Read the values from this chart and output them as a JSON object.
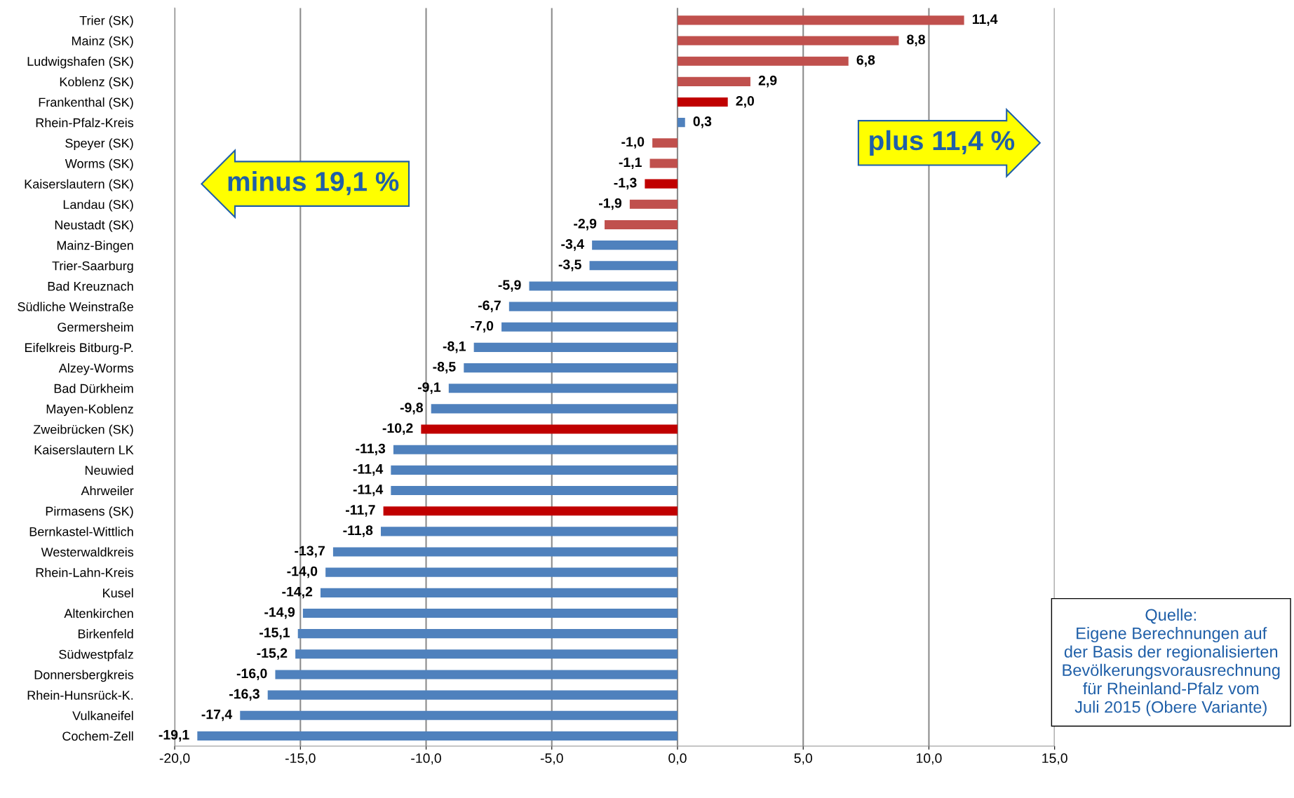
{
  "chart_data": {
    "type": "bar",
    "orientation": "horizontal",
    "grid": "x",
    "categories": [
      "Trier (SK)",
      "Mainz (SK)",
      "Ludwigshafen (SK)",
      "Koblenz (SK)",
      "Frankenthal (SK)",
      "Rhein-Pfalz-Kreis",
      "Speyer (SK)",
      "Worms (SK)",
      "Kaiserslautern (SK)",
      "Landau (SK)",
      "Neustadt (SK)",
      "Mainz-Bingen",
      "Trier-Saarburg",
      "Bad Kreuznach",
      "Südliche Weinstraße",
      "Germersheim",
      "Eifelkreis Bitburg-P.",
      "Alzey-Worms",
      "Bad Dürkheim",
      "Mayen-Koblenz",
      "Zweibrücken (SK)",
      "Kaiserslautern LK",
      "Neuwied",
      "Ahrweiler",
      "Pirmasens (SK)",
      "Bernkastel-Wittlich",
      "Westerwaldkreis",
      "Rhein-Lahn-Kreis",
      "Kusel",
      "Altenkirchen",
      "Birkenfeld",
      "Südwestpfalz",
      "Donnersbergkreis",
      "Rhein-Hunsrück-K.",
      "Vulkaneifel",
      "Cochem-Zell"
    ],
    "values": [
      11.4,
      8.8,
      6.8,
      2.9,
      2.0,
      0.3,
      -1.0,
      -1.1,
      -1.3,
      -1.9,
      -2.9,
      -3.4,
      -3.5,
      -5.9,
      -6.7,
      -7.0,
      -8.1,
      -8.5,
      -9.1,
      -9.8,
      -10.2,
      -11.3,
      -11.4,
      -11.4,
      -11.7,
      -11.8,
      -13.7,
      -14.0,
      -14.2,
      -14.9,
      -15.1,
      -15.2,
      -16.0,
      -16.3,
      -17.4,
      -19.1
    ],
    "value_labels": [
      "11,4",
      "8,8",
      "6,8",
      "2,9",
      "2,0",
      "0,3",
      "-1,0",
      "-1,1",
      "-1,3",
      "-1,9",
      "-2,9",
      "-3,4",
      "-3,5",
      "-5,9",
      "-6,7",
      "-7,0",
      "-8,1",
      "-8,5",
      "-9,1",
      "-9,8",
      "-10,2",
      "-11,3",
      "-11,4",
      "-11,4",
      "-11,7",
      "-11,8",
      "-13,7",
      "-14,0",
      "-14,2",
      "-14,9",
      "-15,1",
      "-15,2",
      "-16,0",
      "-16,3",
      "-17,4",
      "-19,1"
    ],
    "colors": [
      "#c0504d",
      "#c0504d",
      "#c0504d",
      "#c0504d",
      "#c00000",
      "#4f81bd",
      "#c0504d",
      "#c0504d",
      "#c00000",
      "#c0504d",
      "#c0504d",
      "#4f81bd",
      "#4f81bd",
      "#4f81bd",
      "#4f81bd",
      "#4f81bd",
      "#4f81bd",
      "#4f81bd",
      "#4f81bd",
      "#4f81bd",
      "#c00000",
      "#4f81bd",
      "#4f81bd",
      "#4f81bd",
      "#c00000",
      "#4f81bd",
      "#4f81bd",
      "#4f81bd",
      "#4f81bd",
      "#4f81bd",
      "#4f81bd",
      "#4f81bd",
      "#4f81bd",
      "#4f81bd",
      "#4f81bd",
      "#4f81bd"
    ],
    "xlim": [
      -20,
      15
    ],
    "xticks": [
      {
        "value": -20,
        "label": "-20,0"
      },
      {
        "value": -15,
        "label": "-15,0"
      },
      {
        "value": -10,
        "label": "-10,0"
      },
      {
        "value": -5,
        "label": "-5,0"
      },
      {
        "value": 0,
        "label": "0,0"
      },
      {
        "value": 5,
        "label": "5,0"
      },
      {
        "value": 10,
        "label": "10,0"
      },
      {
        "value": 15,
        "label": "15,0"
      }
    ],
    "annotations": [
      "plus 11,4 %",
      "minus 19,1 %",
      "Quelle:\nEigene Berechnungen auf\nder Basis der regionalisierten\nBevölkerungsvorausrechnung\nfür Rheinland-Pfalz vom\nJuli 2015 (Obere Variante)"
    ]
  }
}
